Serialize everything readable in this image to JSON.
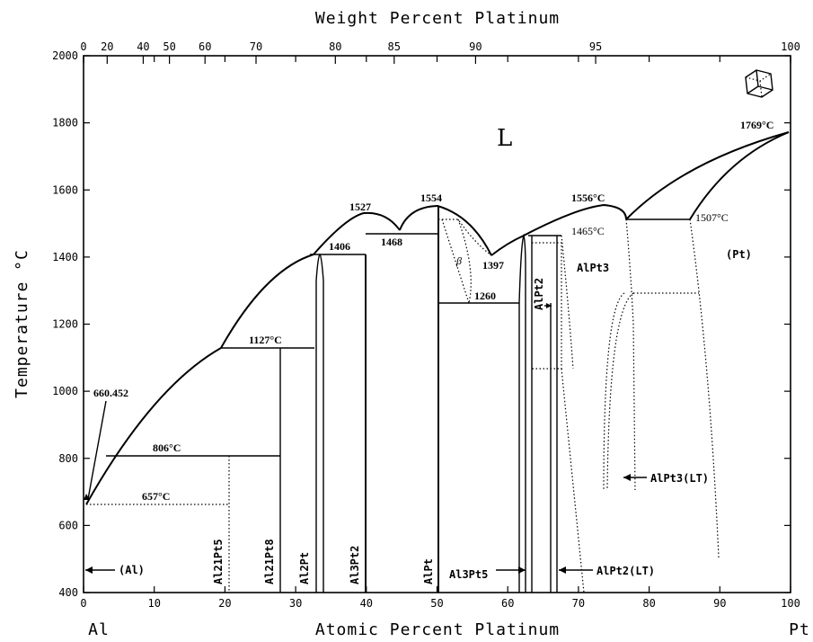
{
  "top_axis": {
    "title": "Weight Percent Platinum",
    "ticks": [
      "0",
      "20",
      "40",
      "50",
      "60",
      "70",
      "80",
      "85",
      "90",
      "95",
      "100"
    ]
  },
  "bottom_axis": {
    "title": "Atomic Percent Platinum",
    "ticks": [
      "0",
      "10",
      "20",
      "30",
      "40",
      "50",
      "60",
      "70",
      "80",
      "90",
      "100"
    ],
    "left_element": "Al",
    "right_element": "Pt"
  },
  "left_axis": {
    "title": "Temperature °C",
    "ticks": [
      "2000",
      "1800",
      "1600",
      "1400",
      "1200",
      "1000",
      "800",
      "600",
      "400"
    ]
  },
  "regions": {
    "liquid": "L",
    "al_phase": "(Al)",
    "pt_phase": "(Pt)",
    "beta": "β"
  },
  "temperatures": {
    "t660": "660.452",
    "t806": "806°C",
    "t657": "657°C",
    "t1127": "1127°C",
    "t1406": "1406",
    "t1527": "1527",
    "t1468": "1468",
    "t1554": "1554",
    "t1397": "1397",
    "t1260": "1260",
    "t1556": "1556°C",
    "t1465": "1465°C",
    "t1507": "1507°C",
    "t1769": "1769°C"
  },
  "phases": {
    "al21pt5": "Al21Pt5",
    "al21pt8": "Al21Pt8",
    "al2pt": "Al2Pt",
    "al3pt2": "Al3Pt2",
    "alpt": "AlPt",
    "al3pt5": "Al3Pt5",
    "alpt2_lt": "AlPt2(LT)",
    "alpt2": "AlPt2",
    "alpt3": "AlPt3",
    "alpt3_lt": "AlPt3(LT)"
  }
}
